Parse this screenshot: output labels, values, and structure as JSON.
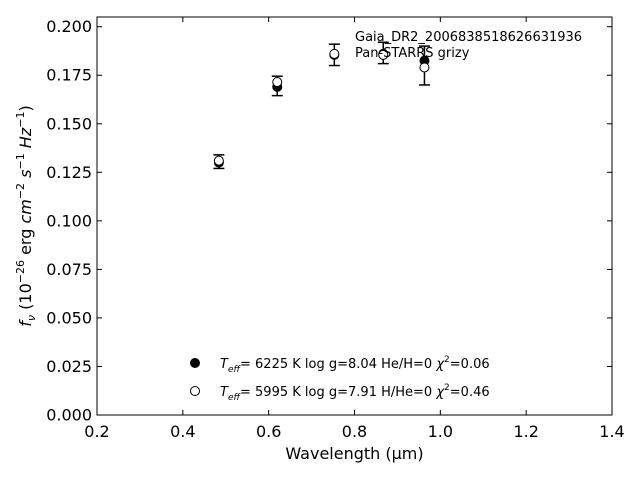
{
  "chart_data": {
    "type": "scatter",
    "object_name": "Gaia_DR2_2006838518626631936",
    "survey": "Pan-STARRS grizy",
    "xlabel": "Wavelength (μm)",
    "ylabel": "f_ν (10^-26 erg cm^-2 s^-1 Hz^-1)",
    "xlim": [
      0.2,
      1.4
    ],
    "ylim": [
      0.0,
      0.205
    ],
    "x_ticks": [
      0.2,
      0.4,
      0.6,
      0.8,
      1.0,
      1.2,
      1.4
    ],
    "y_ticks": [
      0.0,
      0.025,
      0.05,
      0.075,
      0.1,
      0.125,
      0.15,
      0.175,
      0.2
    ],
    "x_tick_labels": [
      "0.2",
      "0.4",
      "0.6",
      "0.8",
      "1.0",
      "1.2",
      "1.4"
    ],
    "y_tick_labels": [
      "0.000",
      "0.025",
      "0.050",
      "0.075",
      "0.100",
      "0.125",
      "0.150",
      "0.175",
      "0.200"
    ],
    "observed": {
      "x": [
        0.484,
        0.62,
        0.753,
        0.867,
        0.963
      ],
      "y": [
        0.1305,
        0.1695,
        0.1855,
        0.1865,
        0.18
      ],
      "yerr": [
        0.0035,
        0.005,
        0.0055,
        0.0055,
        0.01
      ]
    },
    "series": [
      {
        "marker": "filled",
        "teff": "6225 K",
        "logg": "log g=8.04",
        "comp": "He/H=0",
        "chi2": "=0.06",
        "x": [
          0.484,
          0.62,
          0.753,
          0.867,
          0.963
        ],
        "y": [
          0.13,
          0.169,
          0.1855,
          0.186,
          0.1825
        ]
      },
      {
        "marker": "open",
        "teff": "5995 K",
        "logg": "log g=7.91",
        "comp": "H/He=0",
        "chi2": "=0.46",
        "x": [
          0.484,
          0.62,
          0.753,
          0.867,
          0.963
        ],
        "y": [
          0.131,
          0.1715,
          0.186,
          0.1855,
          0.179
        ]
      }
    ]
  }
}
